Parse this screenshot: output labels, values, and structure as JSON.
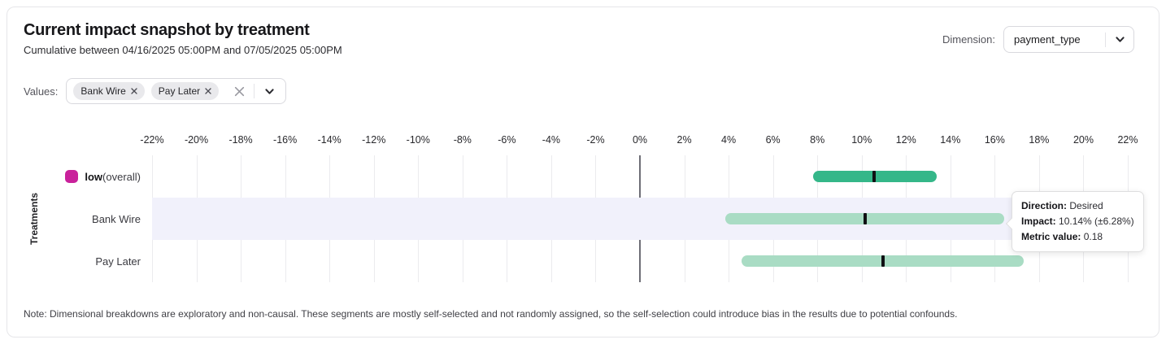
{
  "header": {
    "title": "Current impact snapshot by treatment",
    "subtitle": "Cumulative between 04/16/2025 05:00PM and 07/05/2025 05:00PM"
  },
  "dimension_control": {
    "label": "Dimension:",
    "value": "payment_type"
  },
  "values_control": {
    "label": "Values:",
    "chips": [
      "Bank Wire",
      "Pay Later"
    ]
  },
  "tooltip": {
    "rows": [
      {
        "label": "Direction:",
        "value": "Desired"
      },
      {
        "label": "Impact:",
        "value": "10.14% (±6.28%)"
      },
      {
        "label": "Metric value:",
        "value": "0.18"
      }
    ]
  },
  "note": "Note: Dimensional breakdowns are exploratory and non-causal. These segments are mostly self-selected and not randomly assigned, so the self-selection could introduce bias in the results due to potential confounds.",
  "chart_data": {
    "type": "interval",
    "title": "Current impact snapshot by treatment",
    "xlabel": "",
    "ylabel": "Treatments",
    "xlim": [
      -22,
      22
    ],
    "grid": true,
    "x_tick_values": [
      -22,
      -20,
      -18,
      -16,
      -14,
      -12,
      -10,
      -8,
      -6,
      -4,
      -2,
      0,
      2,
      4,
      6,
      8,
      10,
      12,
      14,
      16,
      18,
      20,
      22
    ],
    "x_tick_labels": [
      "-22%",
      "-20%",
      "-18%",
      "-16%",
      "-14%",
      "-12%",
      "-10%",
      "-8%",
      "-6%",
      "-4%",
      "-2%",
      "0%",
      "2%",
      "4%",
      "6%",
      "8%",
      "10%",
      "12%",
      "14%",
      "16%",
      "18%",
      "20%",
      "22%"
    ],
    "rows": [
      {
        "label": "low",
        "suffix": " (overall)",
        "swatch_color": "#c9219b",
        "bar_color": "#35b789",
        "low": 7.8,
        "mid": 10.55,
        "high": 13.4,
        "highlighted": false
      },
      {
        "label": "Bank Wire",
        "suffix": "",
        "swatch_color": null,
        "bar_color": "#a9dcc4",
        "low": 3.86,
        "mid": 10.14,
        "high": 16.42,
        "highlighted": true,
        "direction": "Desired",
        "impact": "10.14% (±6.28%)",
        "metric_value": "0.18"
      },
      {
        "label": "Pay Later",
        "suffix": "",
        "swatch_color": null,
        "bar_color": "#a9dcc4",
        "low": 4.6,
        "mid": 10.95,
        "high": 17.3,
        "highlighted": false
      }
    ],
    "colors": {
      "band": "#f1f1fb",
      "gridline": "#ebebee",
      "zero_line": "#6e6e76",
      "mid_marker": "#101014"
    }
  }
}
